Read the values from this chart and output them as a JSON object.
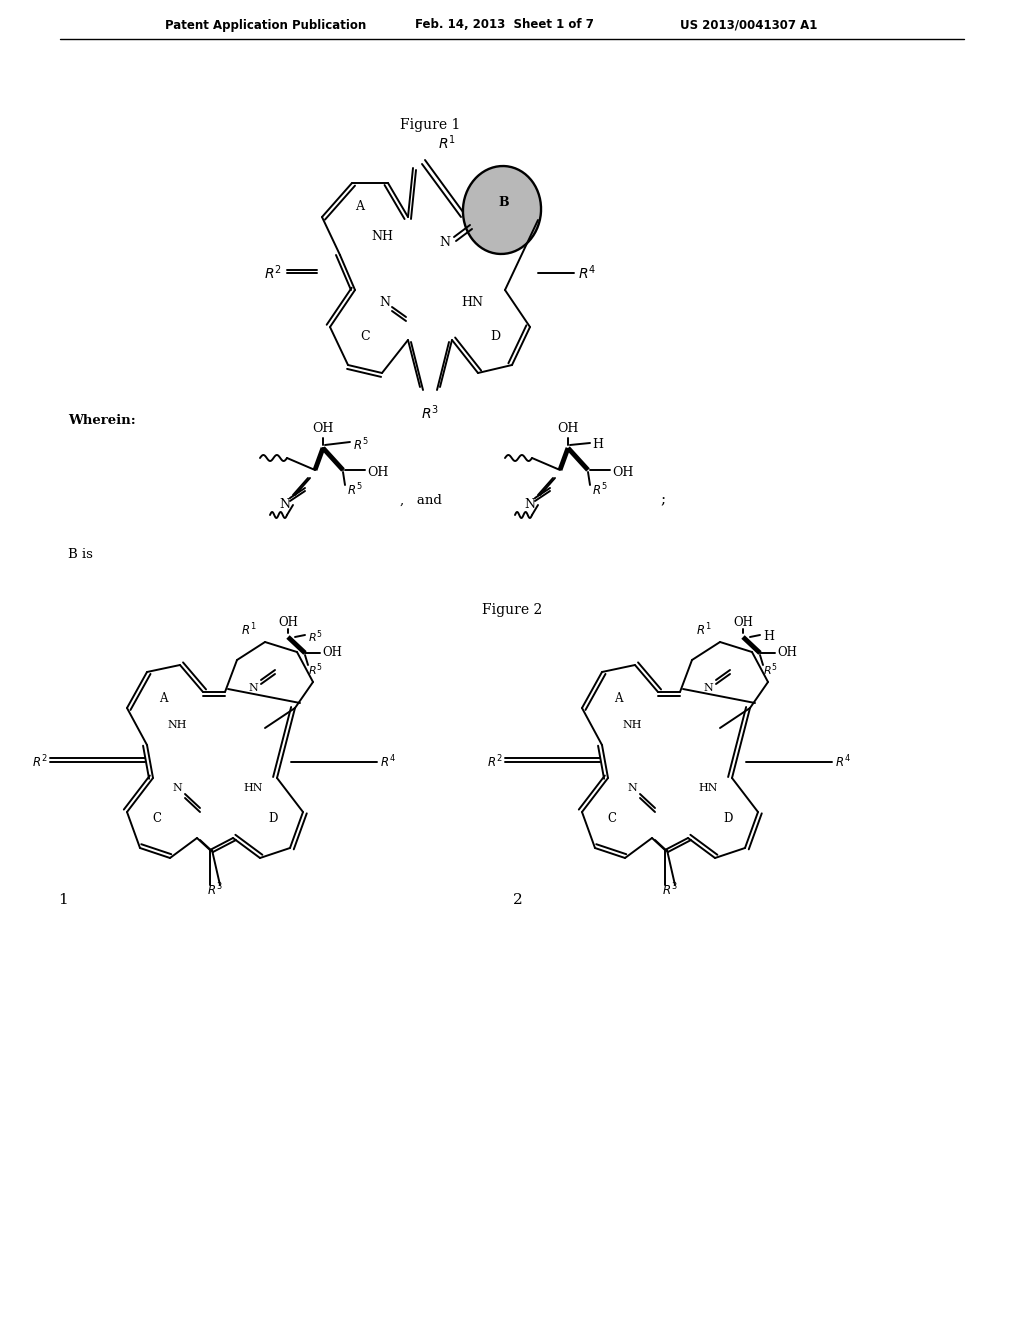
{
  "header_left": "Patent Application Publication",
  "header_mid": "Feb. 14, 2013  Sheet 1 of 7",
  "header_right": "US 2013/0041307 A1",
  "figure1_label": "Figure 1",
  "figure2_label": "Figure 2",
  "wherein_label": "Wherein:",
  "b_is_label": "B is",
  "background": "#ffffff",
  "text_color": "#000000",
  "lw": 1.4
}
